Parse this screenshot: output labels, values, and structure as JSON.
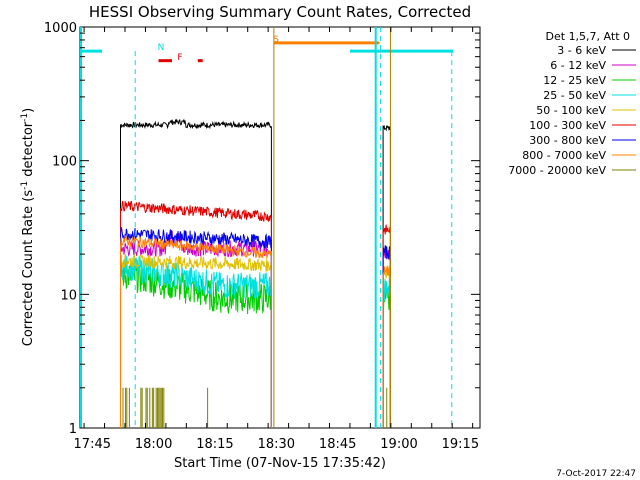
{
  "chart_data": {
    "type": "line",
    "title": "HESSI Observing Summary Count Rates, Corrected",
    "xlabel": "Start Time (07-Nov-15 17:35:42)",
    "ylabel_main": "Corrected Count Rate (s",
    "ylabel_sup1": "-1",
    "ylabel_mid": " detector",
    "ylabel_sup2": "-1",
    "ylabel_end": ")",
    "yscale": "log",
    "ylim": [
      1,
      1000
    ],
    "xlim_minutes": [
      17.7,
      19.33
    ],
    "x_ticks": [
      {
        "label": "17:45",
        "t": 17.75
      },
      {
        "label": "18:00",
        "t": 18.0
      },
      {
        "label": "18:15",
        "t": 18.25
      },
      {
        "label": "18:30",
        "t": 18.5
      },
      {
        "label": "18:45",
        "t": 18.75
      },
      {
        "label": "19:00",
        "t": 19.0
      },
      {
        "label": "19:15",
        "t": 19.25
      }
    ],
    "y_ticks": [
      {
        "label": "1",
        "v": 1
      },
      {
        "label": "10",
        "v": 10
      },
      {
        "label": "100",
        "v": 100
      },
      {
        "label": "1000",
        "v": 1000
      }
    ],
    "legend_header": "Det 1,5,7, Att 0",
    "legend_placement": "right",
    "series": [
      {
        "name": "3 - 6 keV",
        "color": "#000000",
        "level": 185,
        "noise": 0.02
      },
      {
        "name": "6 - 12 keV",
        "color": "#cc00cc",
        "level": 22,
        "noise": 0.06
      },
      {
        "name": "12 - 25 keV",
        "color": "#00cc00",
        "level": 11,
        "noise": 0.12
      },
      {
        "name": "25 - 50 keV",
        "color": "#00e0e0",
        "level": 13,
        "noise": 0.1
      },
      {
        "name": "50 - 100 keV",
        "color": "#e0c000",
        "level": 17,
        "noise": 0.05
      },
      {
        "name": "100 - 300 keV",
        "color": "#e00000",
        "level": 40,
        "noise": 0.04
      },
      {
        "name": "300 - 800 keV",
        "color": "#0000ee",
        "level": 26,
        "noise": 0.05
      },
      {
        "name": "800 - 7000 keV",
        "color": "#ff8000",
        "level": 22,
        "noise": 0.04
      },
      {
        "name": "7000 - 20000 keV",
        "color": "#808000",
        "level": 1.5,
        "noise": 0
      }
    ],
    "flags": [
      {
        "label": "N",
        "color": "#00e0e0"
      },
      {
        "label": "F",
        "color": "#e00000"
      },
      {
        "label": "S",
        "color": "#ff8000"
      }
    ]
  },
  "footer_date": "7-Oct-2017 22:47"
}
